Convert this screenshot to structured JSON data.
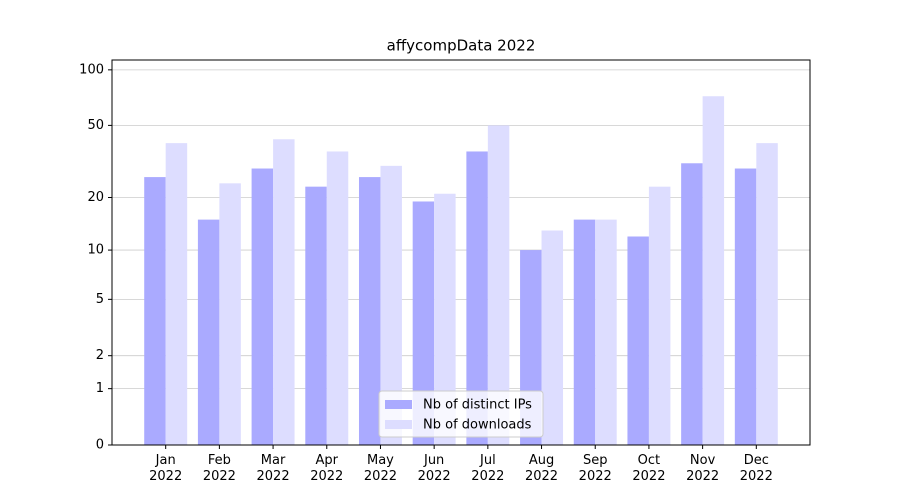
{
  "chart_data": {
    "type": "bar",
    "title": "affycompData 2022",
    "categories": [
      "Jan\n2022",
      "Feb\n2022",
      "Mar\n2022",
      "Apr\n2022",
      "May\n2022",
      "Jun\n2022",
      "Jul\n2022",
      "Aug\n2022",
      "Sep\n2022",
      "Oct\n2022",
      "Nov\n2022",
      "Dec\n2022"
    ],
    "series": [
      {
        "name": "Nb of distinct IPs",
        "color": "#aaaaff",
        "values": [
          26,
          15,
          29,
          23,
          26,
          19,
          36,
          10,
          15,
          12,
          31,
          29
        ]
      },
      {
        "name": "Nb of downloads",
        "color": "#ddddff",
        "values": [
          40,
          24,
          42,
          36,
          30,
          21,
          50,
          13,
          15,
          23,
          72,
          40
        ]
      }
    ],
    "yscale": "log1p",
    "ylim": [
      0,
      113
    ],
    "yticks": [
      0,
      1,
      2,
      5,
      10,
      20,
      50,
      100
    ],
    "grid": true,
    "legend": "lower center"
  }
}
